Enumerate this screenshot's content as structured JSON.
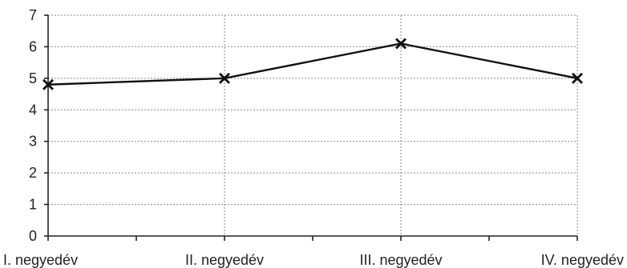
{
  "chart_data": {
    "type": "line",
    "title": "",
    "xlabel": "",
    "ylabel": "",
    "categories": [
      "I. negyedév",
      "II. negyedév",
      "III. negyedév",
      "IV. negyedév"
    ],
    "series": [
      {
        "values": [
          4.8,
          5.0,
          6.1,
          5.0
        ]
      }
    ],
    "ylim": [
      0,
      7
    ],
    "yticks": [
      "0",
      "1",
      "2",
      "3",
      "4",
      "5",
      "6",
      "7"
    ],
    "grid": true,
    "legend": "none",
    "marker": "x",
    "colors": {
      "line": "#111111",
      "axis": "#222222",
      "grid": "#8a8a8a",
      "text": "#222222"
    }
  }
}
